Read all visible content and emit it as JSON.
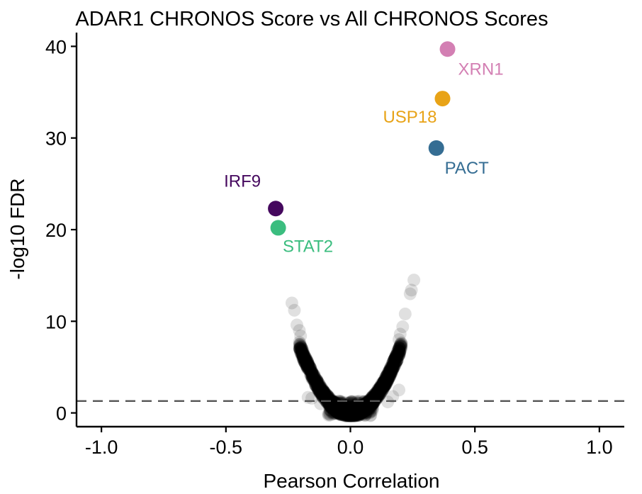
{
  "chart_data": {
    "type": "scatter",
    "title": "ADAR1 CHRONOS Score vs All CHRONOS Scores",
    "xlabel": "Pearson Correlation",
    "ylabel": "-log10 FDR",
    "xlim": [
      -1.1,
      1.1
    ],
    "ylim": [
      -1.5,
      41.5
    ],
    "x_ticks": [
      -1.0,
      -0.5,
      0.0,
      0.5,
      1.0
    ],
    "x_tick_labels": [
      "-1.0",
      "-0.5",
      "0.0",
      "0.5",
      "1.0"
    ],
    "y_ticks": [
      0,
      10,
      20,
      30,
      40
    ],
    "y_tick_labels": [
      "0",
      "10",
      "20",
      "30",
      "40"
    ],
    "grid": false,
    "threshold_line": {
      "y": 1.3,
      "style": "dashed",
      "color": "#555555"
    },
    "highlighted": [
      {
        "label": "XRN1",
        "x": 0.39,
        "y": 39.7,
        "color": "#d37fb3"
      },
      {
        "label": "USP18",
        "x": 0.37,
        "y": 34.3,
        "color": "#e8a317"
      },
      {
        "label": "PACT",
        "x": 0.345,
        "y": 28.9,
        "color": "#356d93"
      },
      {
        "label": "IRF9",
        "x": -0.3,
        "y": 22.3,
        "color": "#45085e"
      },
      {
        "label": "STAT2",
        "x": -0.29,
        "y": 20.2,
        "color": "#3bbd7f"
      }
    ],
    "background_points": {
      "color": "#000000",
      "description_model": "dense V-shaped cloud of points, -log10 FDR rising with |r|",
      "outliers": [
        {
          "x": -0.235,
          "y": 12.0
        },
        {
          "x": -0.225,
          "y": 11.2
        },
        {
          "x": -0.215,
          "y": 9.6
        },
        {
          "x": -0.205,
          "y": 9.0
        },
        {
          "x": -0.2,
          "y": 8.4
        },
        {
          "x": 0.255,
          "y": 14.5
        },
        {
          "x": 0.245,
          "y": 13.4
        },
        {
          "x": 0.24,
          "y": 13.0
        },
        {
          "x": 0.22,
          "y": 10.8
        },
        {
          "x": 0.21,
          "y": 9.4
        },
        {
          "x": 0.2,
          "y": 8.6
        },
        {
          "x": 0.195,
          "y": 8.0
        },
        {
          "x": 0.195,
          "y": 2.5
        },
        {
          "x": 0.17,
          "y": 1.8
        },
        {
          "x": -0.17,
          "y": 1.7
        },
        {
          "x": -0.155,
          "y": 1.6
        },
        {
          "x": 0.15,
          "y": 1.2
        },
        {
          "x": -0.12,
          "y": 1.0
        }
      ]
    }
  }
}
